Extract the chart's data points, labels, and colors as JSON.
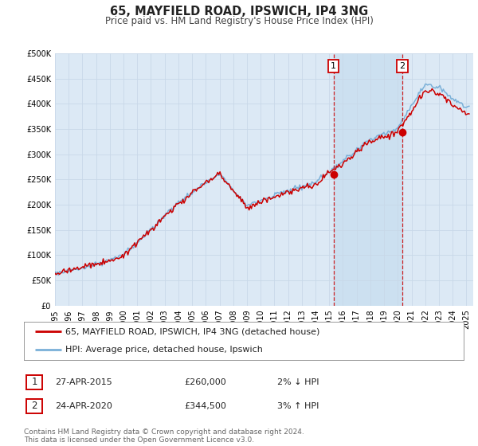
{
  "title": "65, MAYFIELD ROAD, IPSWICH, IP4 3NG",
  "subtitle": "Price paid vs. HM Land Registry's House Price Index (HPI)",
  "background_color": "#ffffff",
  "plot_bg_color": "#dce9f5",
  "highlight_bg_color": "#cce0f0",
  "grid_color": "#c8d8e8",
  "ylim": [
    0,
    500000
  ],
  "yticks": [
    0,
    50000,
    100000,
    150000,
    200000,
    250000,
    300000,
    350000,
    400000,
    450000,
    500000
  ],
  "ytick_labels": [
    "£0",
    "£50K",
    "£100K",
    "£150K",
    "£200K",
    "£250K",
    "£300K",
    "£350K",
    "£400K",
    "£450K",
    "£500K"
  ],
  "xlim_start": 1995.0,
  "xlim_end": 2025.5,
  "xticks": [
    1995,
    1996,
    1997,
    1998,
    1999,
    2000,
    2001,
    2002,
    2003,
    2004,
    2005,
    2006,
    2007,
    2008,
    2009,
    2010,
    2011,
    2012,
    2013,
    2014,
    2015,
    2016,
    2017,
    2018,
    2019,
    2020,
    2021,
    2022,
    2023,
    2024,
    2025
  ],
  "hpi_color": "#7ab0d8",
  "price_color": "#cc0000",
  "sale1_x": 2015.32,
  "sale1_y": 260000,
  "sale2_x": 2020.32,
  "sale2_y": 344500,
  "vline1_x": 2015.32,
  "vline2_x": 2020.32,
  "legend_label1": "65, MAYFIELD ROAD, IPSWICH, IP4 3NG (detached house)",
  "legend_label2": "HPI: Average price, detached house, Ipswich",
  "annotation1_num": "1",
  "annotation1_date": "27-APR-2015",
  "annotation1_price": "£260,000",
  "annotation1_hpi": "2% ↓ HPI",
  "annotation2_num": "2",
  "annotation2_date": "24-APR-2020",
  "annotation2_price": "£344,500",
  "annotation2_hpi": "3% ↑ HPI",
  "footer": "Contains HM Land Registry data © Crown copyright and database right 2024.\nThis data is licensed under the Open Government Licence v3.0.",
  "title_fontsize": 10.5,
  "subtitle_fontsize": 8.5,
  "tick_fontsize": 7,
  "legend_fontsize": 8,
  "annotation_fontsize": 8,
  "footer_fontsize": 6.5
}
